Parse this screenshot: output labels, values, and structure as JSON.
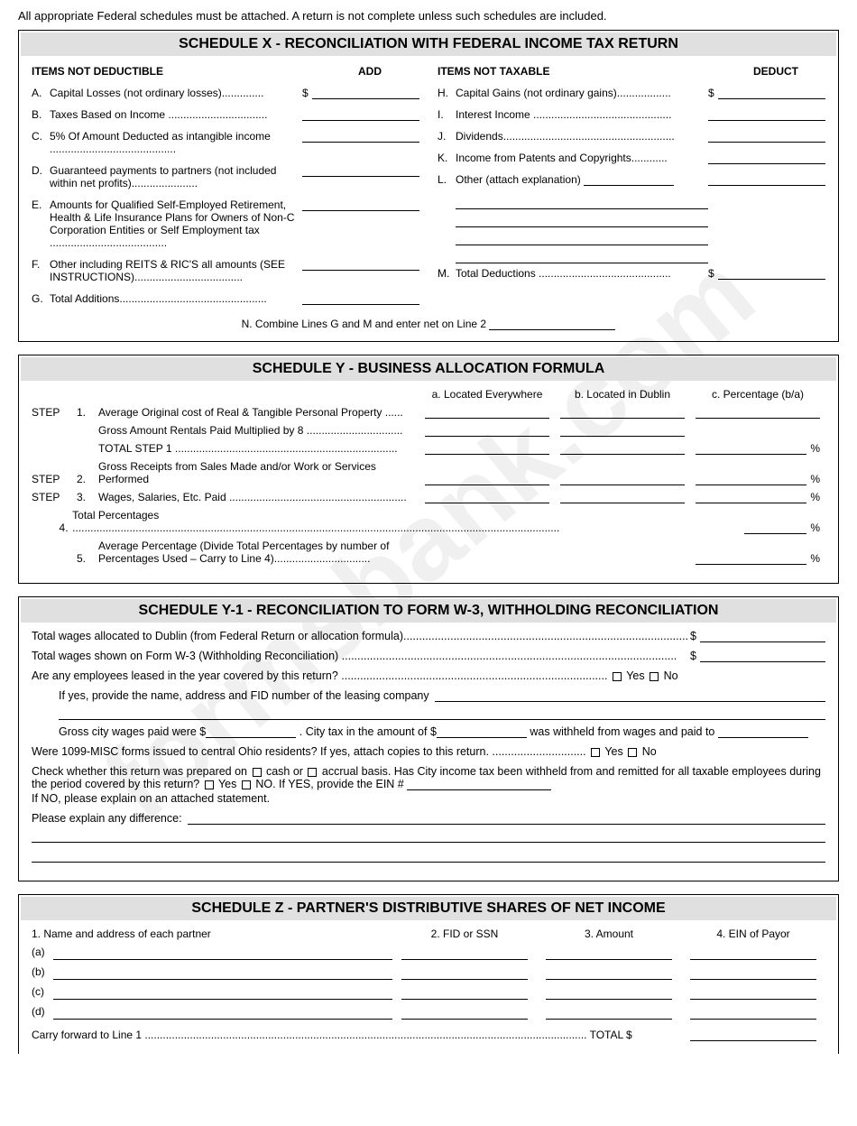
{
  "watermark_text": "formsbank.com",
  "top_note": "All appropriate Federal schedules must be attached. A return is not complete unless such schedules are included.",
  "schedX": {
    "title": "SCHEDULE X - RECONCILIATION WITH FEDERAL INCOME TAX RETURN",
    "left_head_label": "ITEMS NOT DEDUCTIBLE",
    "left_head_amt": "ADD",
    "right_head_label": "ITEMS NOT TAXABLE",
    "right_head_amt": "DEDUCT",
    "left": [
      {
        "letter": "A.",
        "text": "Capital Losses (not ordinary losses)..............",
        "dollar": true
      },
      {
        "letter": "B.",
        "text": "Taxes Based on Income .................................",
        "dollar": false
      },
      {
        "letter": "C.",
        "text": "5% Of Amount Deducted as intangible income ..........................................",
        "dollar": false
      },
      {
        "letter": "D.",
        "text": "Guaranteed payments to partners (not included within net profits)......................",
        "dollar": false
      },
      {
        "letter": "E.",
        "text": "Amounts for Qualified Self-Employed Retirement, Health & Life Insurance Plans for Owners of Non-C Corporation Entities or Self Employment tax .......................................",
        "dollar": false
      },
      {
        "letter": "F.",
        "text": "Other including REITS & RIC'S all amounts (SEE INSTRUCTIONS)....................................",
        "dollar": false
      },
      {
        "letter": "G.",
        "text": "Total Additions.................................................",
        "dollar": false
      }
    ],
    "right": [
      {
        "letter": "H.",
        "text": "Capital Gains (not ordinary gains)..................",
        "dollar": true
      },
      {
        "letter": "I.",
        "text": "Interest Income ..............................................",
        "dollar": false
      },
      {
        "letter": "J.",
        "text": "Dividends.........................................................",
        "dollar": false
      },
      {
        "letter": "K.",
        "text": "Income from Patents and Copyrights............",
        "dollar": false
      },
      {
        "letter": "L.",
        "text": "Other (attach explanation)",
        "dollar": false
      },
      {
        "letter": "M.",
        "text": "Total Deductions ............................................",
        "dollar": true
      }
    ],
    "line_n_pre": "N.   Combine Lines G and M and enter net on Line 2"
  },
  "schedY": {
    "title": "SCHEDULE Y - BUSINESS ALLOCATION FORMULA",
    "col_a": "a. Located Everywhere",
    "col_b": "b. Located in Dublin",
    "col_c": "c. Percentage (b/a)",
    "rows": [
      {
        "step": "STEP",
        "num": "1.",
        "desc": "Average Original cost of Real & Tangible Personal Property ......",
        "a": true,
        "b": true,
        "c": true,
        "pct": false
      },
      {
        "step": "",
        "num": "",
        "desc": "Gross Amount Rentals Paid Multiplied by 8 ................................",
        "a": true,
        "b": true,
        "c": false,
        "pct": false
      },
      {
        "step": "",
        "num": "",
        "desc": "TOTAL STEP 1    ..........................................................................",
        "a": true,
        "b": true,
        "c": true,
        "pct": true
      },
      {
        "step": "STEP",
        "num": "2.",
        "desc": "Gross Receipts from Sales Made and/or Work or Services Performed",
        "a": true,
        "b": true,
        "c": true,
        "pct": true
      },
      {
        "step": "STEP",
        "num": "3.",
        "desc": "Wages, Salaries, Etc. Paid ...........................................................",
        "a": true,
        "b": true,
        "c": true,
        "pct": true
      },
      {
        "step": "",
        "num": "4.",
        "desc": "Total Percentages ..................................................................................................................................................................",
        "a": false,
        "b": false,
        "c": true,
        "pct": true
      },
      {
        "step": "",
        "num": "5.",
        "desc": "Average Percentage (Divide Total Percentages by number of Percentages Used – Carry to Line 4)................................",
        "a": false,
        "b": false,
        "c": true,
        "pct": true
      }
    ]
  },
  "schedY1": {
    "title": "SCHEDULE Y-1 - RECONCILIATION TO FORM W-3, WITHHOLDING RECONCILIATION",
    "line1": "Total wages allocated to Dublin (from Federal Return or allocation formula)...........................................................................................",
    "line2": "Total wages shown on Form W-3  (Withholding Reconciliation) ...........................................................................................................",
    "line3": "Are any employees leased in the year covered by this return? .....................................................................................",
    "yes": "Yes",
    "no": "No",
    "line3b": "If yes, provide the name, address and FID number of the leasing company",
    "line4a": "Gross city wages paid were $",
    "line4b": ". City tax in the amount of $",
    "line4c": " was withheld from wages and paid to",
    "line5": "Were 1099-MISC forms issued to central Ohio residents? If yes, attach copies to this return. ..............................",
    "line6": "Check whether this return was prepared on ",
    "line6b": " cash or ",
    "line6c": " accrual basis. Has City income tax been withheld from and remitted for all taxable employees during the period covered by this return? ",
    "line6d": " NO. If YES, provide the EIN #",
    "line6e": "If NO, please explain on an attached statement.",
    "line7": "Please explain any difference:"
  },
  "schedZ": {
    "title": "SCHEDULE Z - PARTNER'S DISTRIBUTIVE SHARES OF NET INCOME",
    "h1": "1. Name and address of each partner",
    "h2": "2. FID or SSN",
    "h3": "3. Amount",
    "h4": "4. EIN of Payor",
    "rows": [
      "(a)",
      "(b)",
      "(c)",
      "(d)"
    ],
    "total": "Carry forward to Line 1 ................................................................................................................................................... TOTAL  $"
  }
}
